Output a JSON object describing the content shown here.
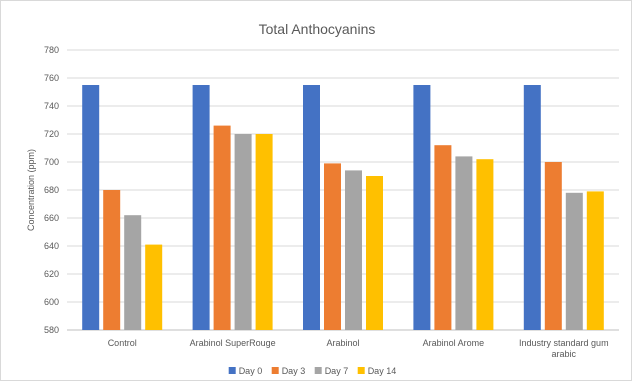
{
  "chart_data": {
    "type": "bar",
    "title": "Total Anthocyanins",
    "xlabel": "",
    "ylabel": "Concentration (ppm)",
    "ylim": [
      580,
      780
    ],
    "ytick_step": 20,
    "grid": true,
    "legend_position": "bottom",
    "categories": [
      "Control",
      "Arabinol SuperRouge",
      "Arabinol",
      "Arabinol Arome",
      [
        "Industry standard gum",
        "arabic"
      ]
    ],
    "series": [
      {
        "name": "Day 0",
        "color": "#4472c4",
        "values": [
          755,
          755,
          755,
          755,
          755
        ]
      },
      {
        "name": "Day 3",
        "color": "#ed7d31",
        "values": [
          680,
          726,
          699,
          712,
          700
        ]
      },
      {
        "name": "Day 7",
        "color": "#a5a5a5",
        "values": [
          662,
          720,
          694,
          704,
          678
        ]
      },
      {
        "name": "Day 14",
        "color": "#ffc000",
        "values": [
          641,
          720,
          690,
          702,
          679
        ]
      }
    ]
  }
}
